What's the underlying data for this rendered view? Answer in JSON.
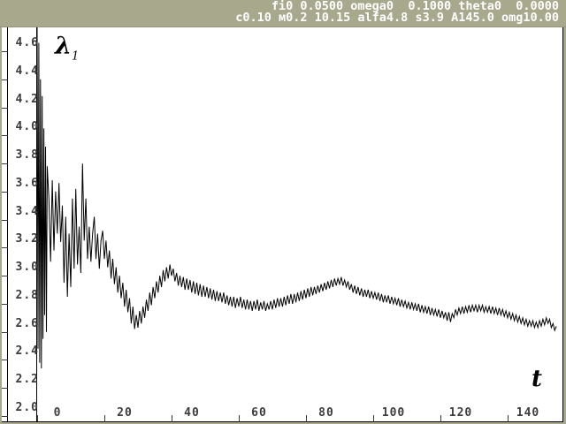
{
  "header": {
    "line1": "fi0 0.0500 omega0  0.1000 theta0  0.0000",
    "line2": "c0.10 м0.2 10.15 alfa4.8 s3.9 A145.0 omg10.00"
  },
  "colors": {
    "frame_bg": "#a8a88c",
    "plot_bg": "#ffffff",
    "header_text": "#ffffff",
    "tick_text": "#3c3c3c",
    "curve": "#000000",
    "axis": "#000000"
  },
  "chart_data": {
    "type": "line",
    "title": "",
    "xlabel": "t",
    "ylabel": "λ",
    "ylabel_sub": "1",
    "xlim": [
      0,
      156
    ],
    "ylim": [
      2.0,
      4.6
    ],
    "grid": false,
    "legend": "none",
    "x_ticks": [
      "0",
      "20",
      "40",
      "60",
      "80",
      "100",
      "120",
      "140"
    ],
    "y_ticks": [
      "4.6",
      "4.4",
      "4.2",
      "4.0",
      "3.8",
      "3.6",
      "3.4",
      "3.2",
      "3.0",
      "2.8",
      "2.6",
      "2.4",
      "2.2",
      "2.0"
    ],
    "series": [
      {
        "name": "lambda1",
        "points": [
          [
            0,
            4.77
          ],
          [
            0.25,
            2.48
          ],
          [
            0.5,
            4.66
          ],
          [
            0.75,
            2.38
          ],
          [
            1,
            4.4
          ],
          [
            1.25,
            2.34
          ],
          [
            1.5,
            4.28
          ],
          [
            1.75,
            2.55
          ],
          [
            2,
            4.05
          ],
          [
            2.25,
            2.72
          ],
          [
            2.5,
            3.92
          ],
          [
            2.75,
            2.6
          ],
          [
            3,
            3.78
          ],
          [
            3.5,
            3.55
          ],
          [
            4,
            3.1
          ],
          [
            4.5,
            3.68
          ],
          [
            5,
            3.18
          ],
          [
            5.5,
            3.6
          ],
          [
            6,
            3.3
          ],
          [
            6.5,
            3.66
          ],
          [
            7,
            3.24
          ],
          [
            7.5,
            3.5
          ],
          [
            8,
            2.95
          ],
          [
            8.5,
            3.42
          ],
          [
            9,
            2.85
          ],
          [
            9.5,
            3.3
          ],
          [
            10,
            2.92
          ],
          [
            10.5,
            3.55
          ],
          [
            11,
            3.05
          ],
          [
            11.5,
            3.62
          ],
          [
            12,
            3.08
          ],
          [
            12.5,
            3.35
          ],
          [
            13,
            3.02
          ],
          [
            13.5,
            3.8
          ],
          [
            14,
            3.25
          ],
          [
            14.5,
            3.55
          ],
          [
            15,
            3.12
          ],
          [
            15.5,
            3.35
          ],
          [
            16,
            3.1
          ],
          [
            16.5,
            3.3
          ],
          [
            17,
            3.42
          ],
          [
            17.5,
            3.12
          ],
          [
            18,
            3.3
          ],
          [
            18.5,
            3.05
          ],
          [
            19,
            3.25
          ],
          [
            19.5,
            3.32
          ],
          [
            20,
            3.12
          ],
          [
            20.5,
            3.25
          ],
          [
            21,
            3.06
          ],
          [
            21.5,
            3.18
          ],
          [
            22,
            2.98
          ],
          [
            22.5,
            3.12
          ],
          [
            23,
            2.94
          ],
          [
            23.5,
            3.06
          ],
          [
            24,
            2.88
          ],
          [
            24.5,
            3
          ],
          [
            25,
            2.84
          ],
          [
            25.5,
            2.95
          ],
          [
            26,
            2.78
          ],
          [
            26.5,
            2.9
          ],
          [
            27,
            2.74
          ],
          [
            27.5,
            2.84
          ],
          [
            28,
            2.66
          ],
          [
            28.5,
            2.78
          ],
          [
            29,
            2.62
          ],
          [
            29.5,
            2.72
          ],
          [
            30,
            2.63
          ],
          [
            30.5,
            2.75
          ],
          [
            31,
            2.66
          ],
          [
            31.5,
            2.78
          ],
          [
            32,
            2.7
          ],
          [
            32.5,
            2.83
          ],
          [
            33,
            2.75
          ],
          [
            33.5,
            2.88
          ],
          [
            34,
            2.79
          ],
          [
            34.5,
            2.92
          ],
          [
            35,
            2.84
          ],
          [
            35.5,
            2.96
          ],
          [
            36,
            2.88
          ],
          [
            36.5,
            3
          ],
          [
            37,
            2.92
          ],
          [
            37.5,
            3.04
          ],
          [
            38,
            2.96
          ],
          [
            38.5,
            3.06
          ],
          [
            39,
            2.98
          ],
          [
            39.5,
            3.08
          ],
          [
            40,
            3
          ],
          [
            40.5,
            3.05
          ],
          [
            41,
            2.96
          ],
          [
            41.5,
            3.02
          ],
          [
            42,
            2.93
          ],
          [
            42.5,
            3
          ],
          [
            43,
            2.92
          ],
          [
            43.5,
            2.99
          ],
          [
            44,
            2.9
          ],
          [
            44.5,
            2.98
          ],
          [
            45,
            2.9
          ],
          [
            45.5,
            2.97
          ],
          [
            46,
            2.88
          ],
          [
            46.5,
            2.96
          ],
          [
            47,
            2.87
          ],
          [
            47.5,
            2.95
          ],
          [
            48,
            2.86
          ],
          [
            48.5,
            2.94
          ],
          [
            49,
            2.85
          ],
          [
            49.5,
            2.93
          ],
          [
            50,
            2.85
          ],
          [
            50.5,
            2.92
          ],
          [
            51,
            2.84
          ],
          [
            51.5,
            2.91
          ],
          [
            52,
            2.83
          ],
          [
            52.5,
            2.9
          ],
          [
            53,
            2.82
          ],
          [
            53.5,
            2.89
          ],
          [
            54,
            2.82
          ],
          [
            54.5,
            2.88
          ],
          [
            55,
            2.81
          ],
          [
            55.5,
            2.88
          ],
          [
            56,
            2.8
          ],
          [
            56.5,
            2.86
          ],
          [
            57,
            2.79
          ],
          [
            57.5,
            2.85
          ],
          [
            58,
            2.78
          ],
          [
            58.5,
            2.85
          ],
          [
            59,
            2.77
          ],
          [
            59.5,
            2.84
          ],
          [
            60,
            2.78
          ],
          [
            60.5,
            2.85
          ],
          [
            61,
            2.77
          ],
          [
            61.5,
            2.83
          ],
          [
            62,
            2.76
          ],
          [
            62.5,
            2.83
          ],
          [
            63,
            2.76
          ],
          [
            63.5,
            2.82
          ],
          [
            64,
            2.75
          ],
          [
            64.5,
            2.82
          ],
          [
            65,
            2.76
          ],
          [
            65.5,
            2.83
          ],
          [
            66,
            2.75
          ],
          [
            66.5,
            2.81
          ],
          [
            67,
            2.76
          ],
          [
            67.5,
            2.82
          ],
          [
            68,
            2.75
          ],
          [
            68.5,
            2.8
          ],
          [
            69,
            2.76
          ],
          [
            69.5,
            2.82
          ],
          [
            70,
            2.76
          ],
          [
            70.5,
            2.83
          ],
          [
            71,
            2.77
          ],
          [
            71.5,
            2.84
          ],
          [
            72,
            2.78
          ],
          [
            72.5,
            2.84
          ],
          [
            73,
            2.78
          ],
          [
            73.5,
            2.85
          ],
          [
            74,
            2.79
          ],
          [
            74.5,
            2.86
          ],
          [
            75,
            2.8
          ],
          [
            75.5,
            2.87
          ],
          [
            76,
            2.8
          ],
          [
            76.5,
            2.87
          ],
          [
            77,
            2.81
          ],
          [
            77.5,
            2.88
          ],
          [
            78,
            2.82
          ],
          [
            78.5,
            2.89
          ],
          [
            79,
            2.83
          ],
          [
            79.5,
            2.9
          ],
          [
            80,
            2.84
          ],
          [
            80.5,
            2.91
          ],
          [
            81,
            2.85
          ],
          [
            81.5,
            2.92
          ],
          [
            82,
            2.86
          ],
          [
            82.5,
            2.92
          ],
          [
            83,
            2.87
          ],
          [
            83.5,
            2.93
          ],
          [
            84,
            2.88
          ],
          [
            84.5,
            2.94
          ],
          [
            85,
            2.89
          ],
          [
            85.5,
            2.95
          ],
          [
            86,
            2.9
          ],
          [
            86.5,
            2.96
          ],
          [
            87,
            2.91
          ],
          [
            87.5,
            2.97
          ],
          [
            88,
            2.92
          ],
          [
            88.5,
            2.98
          ],
          [
            89,
            2.93
          ],
          [
            89.5,
            2.98
          ],
          [
            90,
            2.94
          ],
          [
            90.5,
            2.99
          ],
          [
            91,
            2.93
          ],
          [
            91.5,
            2.97
          ],
          [
            92,
            2.92
          ],
          [
            92.5,
            2.96
          ],
          [
            93,
            2.9
          ],
          [
            93.5,
            2.94
          ],
          [
            94,
            2.88
          ],
          [
            94.5,
            2.93
          ],
          [
            95,
            2.87
          ],
          [
            95.5,
            2.92
          ],
          [
            96,
            2.86
          ],
          [
            96.5,
            2.91
          ],
          [
            97,
            2.85
          ],
          [
            97.5,
            2.9
          ],
          [
            98,
            2.85
          ],
          [
            98.5,
            2.9
          ],
          [
            99,
            2.84
          ],
          [
            99.5,
            2.89
          ],
          [
            100,
            2.84
          ],
          [
            100.5,
            2.88
          ],
          [
            101,
            2.83
          ],
          [
            101.5,
            2.88
          ],
          [
            102,
            2.82
          ],
          [
            102.5,
            2.87
          ],
          [
            103,
            2.81
          ],
          [
            103.5,
            2.86
          ],
          [
            104,
            2.81
          ],
          [
            104.5,
            2.86
          ],
          [
            105,
            2.8
          ],
          [
            105.5,
            2.85
          ],
          [
            106,
            2.8
          ],
          [
            106.5,
            2.84
          ],
          [
            107,
            2.79
          ],
          [
            107.5,
            2.84
          ],
          [
            108,
            2.78
          ],
          [
            108.5,
            2.83
          ],
          [
            109,
            2.78
          ],
          [
            109.5,
            2.82
          ],
          [
            110,
            2.77
          ],
          [
            110.5,
            2.81
          ],
          [
            111,
            2.76
          ],
          [
            111.5,
            2.81
          ],
          [
            112,
            2.76
          ],
          [
            112.5,
            2.8
          ],
          [
            113,
            2.75
          ],
          [
            113.5,
            2.8
          ],
          [
            114,
            2.74
          ],
          [
            114.5,
            2.79
          ],
          [
            115,
            2.74
          ],
          [
            115.5,
            2.78
          ],
          [
            116,
            2.73
          ],
          [
            116.5,
            2.78
          ],
          [
            117,
            2.72
          ],
          [
            117.5,
            2.77
          ],
          [
            118,
            2.72
          ],
          [
            118.5,
            2.76
          ],
          [
            119,
            2.71
          ],
          [
            119.5,
            2.76
          ],
          [
            120,
            2.7
          ],
          [
            120.5,
            2.75
          ],
          [
            121,
            2.7
          ],
          [
            121.5,
            2.74
          ],
          [
            122,
            2.68
          ],
          [
            122.5,
            2.74
          ],
          [
            123,
            2.67
          ],
          [
            123.5,
            2.73
          ],
          [
            124,
            2.7
          ],
          [
            124.5,
            2.76
          ],
          [
            125,
            2.72
          ],
          [
            125.5,
            2.77
          ],
          [
            126,
            2.73
          ],
          [
            126.5,
            2.78
          ],
          [
            127,
            2.73
          ],
          [
            127.5,
            2.78
          ],
          [
            128,
            2.74
          ],
          [
            128.5,
            2.79
          ],
          [
            129,
            2.74
          ],
          [
            129.5,
            2.79
          ],
          [
            130,
            2.75
          ],
          [
            130.5,
            2.79
          ],
          [
            131,
            2.74
          ],
          [
            131.5,
            2.79
          ],
          [
            132,
            2.75
          ],
          [
            132.5,
            2.79
          ],
          [
            133,
            2.74
          ],
          [
            133.5,
            2.78
          ],
          [
            134,
            2.74
          ],
          [
            134.5,
            2.78
          ],
          [
            135,
            2.73
          ],
          [
            135.5,
            2.78
          ],
          [
            136,
            2.73
          ],
          [
            136.5,
            2.77
          ],
          [
            137,
            2.72
          ],
          [
            137.5,
            2.77
          ],
          [
            138,
            2.72
          ],
          [
            138.5,
            2.76
          ],
          [
            139,
            2.71
          ],
          [
            139.5,
            2.75
          ],
          [
            140,
            2.7
          ],
          [
            140.5,
            2.74
          ],
          [
            141,
            2.69
          ],
          [
            141.5,
            2.73
          ],
          [
            142,
            2.68
          ],
          [
            142.5,
            2.72
          ],
          [
            143,
            2.67
          ],
          [
            143.5,
            2.71
          ],
          [
            144,
            2.66
          ],
          [
            144.5,
            2.7
          ],
          [
            145,
            2.65
          ],
          [
            145.5,
            2.69
          ],
          [
            146,
            2.64
          ],
          [
            146.5,
            2.68
          ],
          [
            147,
            2.64
          ],
          [
            147.5,
            2.68
          ],
          [
            148,
            2.63
          ],
          [
            148.5,
            2.67
          ],
          [
            149,
            2.63
          ],
          [
            149.5,
            2.68
          ],
          [
            150,
            2.64
          ],
          [
            150.5,
            2.69
          ],
          [
            151,
            2.65
          ],
          [
            151.5,
            2.7
          ],
          [
            152,
            2.66
          ],
          [
            152.5,
            2.69
          ],
          [
            153,
            2.63
          ],
          [
            153.5,
            2.66
          ],
          [
            154,
            2.61
          ],
          [
            154.5,
            2.64
          ]
        ]
      }
    ]
  }
}
